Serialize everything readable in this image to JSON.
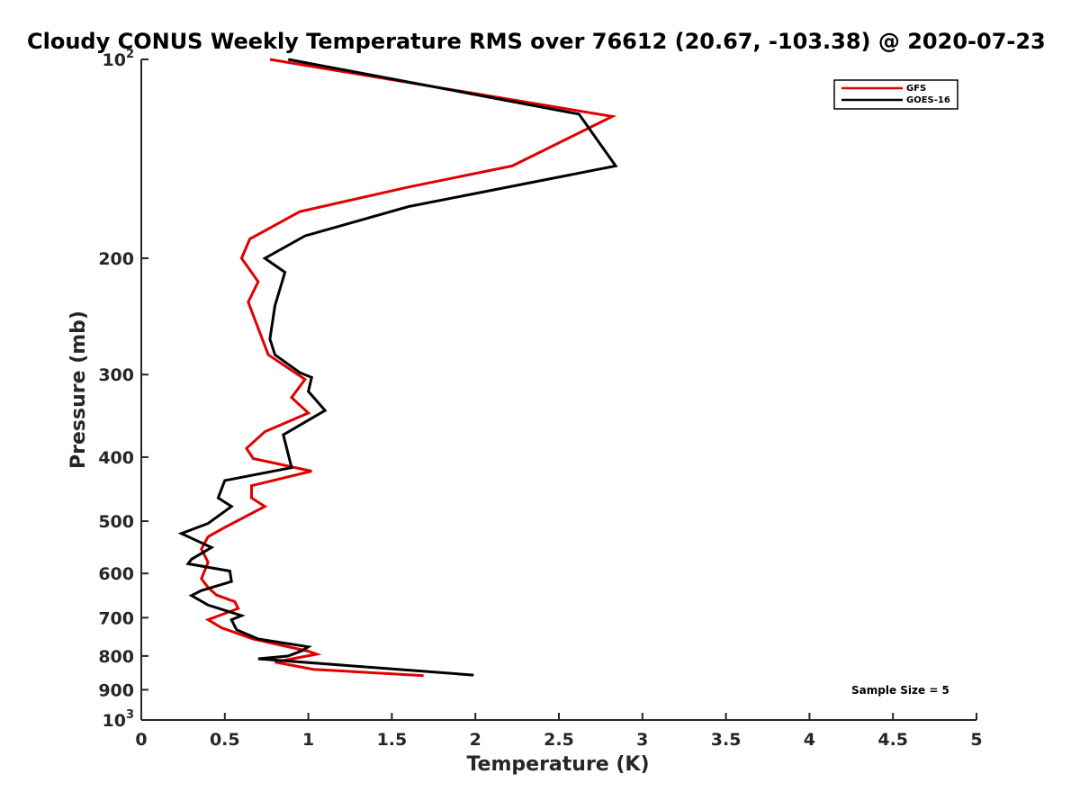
{
  "chart_data": {
    "type": "line",
    "title": "Cloudy CONUS Weekly Temperature RMS over 76612 (20.67, -103.38) @ 2020-07-23",
    "xlabel": "Temperature (K)",
    "ylabel": "Pressure (mb)",
    "xlim": [
      0,
      5
    ],
    "ylim": [
      100,
      1000
    ],
    "yscale": "log",
    "y_reversed": true,
    "x_ticks": [
      {
        "value": 0,
        "label": "0"
      },
      {
        "value": 0.5,
        "label": "0.5"
      },
      {
        "value": 1,
        "label": "1"
      },
      {
        "value": 1.5,
        "label": "1.5"
      },
      {
        "value": 2,
        "label": "2"
      },
      {
        "value": 2.5,
        "label": "2.5"
      },
      {
        "value": 3,
        "label": "3"
      },
      {
        "value": 3.5,
        "label": "3.5"
      },
      {
        "value": 4,
        "label": "4"
      },
      {
        "value": 4.5,
        "label": "4.5"
      },
      {
        "value": 5,
        "label": "5"
      }
    ],
    "y_ticks": [
      {
        "value": 100,
        "label": "10",
        "exponent": "2"
      },
      {
        "value": 200,
        "label": "200"
      },
      {
        "value": 300,
        "label": "300"
      },
      {
        "value": 400,
        "label": "400"
      },
      {
        "value": 500,
        "label": "500"
      },
      {
        "value": 600,
        "label": "600"
      },
      {
        "value": 700,
        "label": "700"
      },
      {
        "value": 800,
        "label": "800"
      },
      {
        "value": 900,
        "label": "900"
      },
      {
        "value": 1000,
        "label": "10",
        "exponent": "3"
      }
    ],
    "series": [
      {
        "name": "GFS",
        "color": "#e00000",
        "points": [
          [
            0.77,
            100
          ],
          [
            2.82,
            122
          ],
          [
            2.22,
            145
          ],
          [
            1.6,
            156
          ],
          [
            0.95,
            170
          ],
          [
            0.65,
            187
          ],
          [
            0.6,
            200
          ],
          [
            0.7,
            217
          ],
          [
            0.64,
            233
          ],
          [
            0.76,
            280
          ],
          [
            0.98,
            305
          ],
          [
            0.9,
            325
          ],
          [
            1.0,
            343
          ],
          [
            0.74,
            366
          ],
          [
            0.63,
            388
          ],
          [
            0.67,
            402
          ],
          [
            1.02,
            420
          ],
          [
            0.66,
            442
          ],
          [
            0.66,
            461
          ],
          [
            0.74,
            475
          ],
          [
            0.5,
            511
          ],
          [
            0.4,
            528
          ],
          [
            0.36,
            551
          ],
          [
            0.4,
            577
          ],
          [
            0.36,
            611
          ],
          [
            0.4,
            630
          ],
          [
            0.45,
            647
          ],
          [
            0.56,
            662
          ],
          [
            0.58,
            678
          ],
          [
            0.4,
            705
          ],
          [
            0.48,
            725
          ],
          [
            0.67,
            754
          ],
          [
            1.0,
            787
          ],
          [
            1.05,
            795
          ],
          [
            0.8,
            817
          ],
          [
            1.03,
            838
          ],
          [
            1.69,
            857
          ]
        ]
      },
      {
        "name": "GOES-16",
        "color": "#000000",
        "points": [
          [
            0.88,
            100
          ],
          [
            2.62,
            121
          ],
          [
            2.84,
            145
          ],
          [
            1.6,
            167
          ],
          [
            0.98,
            185
          ],
          [
            0.74,
            200
          ],
          [
            0.86,
            210
          ],
          [
            0.8,
            236
          ],
          [
            0.77,
            265
          ],
          [
            0.8,
            280
          ],
          [
            0.95,
            298
          ],
          [
            1.02,
            303
          ],
          [
            1.0,
            318
          ],
          [
            1.1,
            340
          ],
          [
            0.85,
            370
          ],
          [
            0.9,
            415
          ],
          [
            0.5,
            434
          ],
          [
            0.46,
            461
          ],
          [
            0.54,
            475
          ],
          [
            0.4,
            504
          ],
          [
            0.24,
            522
          ],
          [
            0.42,
            548
          ],
          [
            0.3,
            571
          ],
          [
            0.28,
            580
          ],
          [
            0.53,
            595
          ],
          [
            0.54,
            617
          ],
          [
            0.36,
            637
          ],
          [
            0.3,
            648
          ],
          [
            0.4,
            670
          ],
          [
            0.6,
            695
          ],
          [
            0.54,
            705
          ],
          [
            0.57,
            730
          ],
          [
            0.7,
            754
          ],
          [
            1.0,
            775
          ],
          [
            0.96,
            786
          ],
          [
            0.88,
            800
          ],
          [
            0.7,
            808
          ],
          [
            1.99,
            855
          ]
        ]
      }
    ],
    "legend": {
      "position": "top-right",
      "entries": [
        {
          "label": "GFS",
          "color": "#e00000"
        },
        {
          "label": "GOES-16",
          "color": "#000000"
        }
      ]
    },
    "annotation": "Sample Size = 5"
  }
}
